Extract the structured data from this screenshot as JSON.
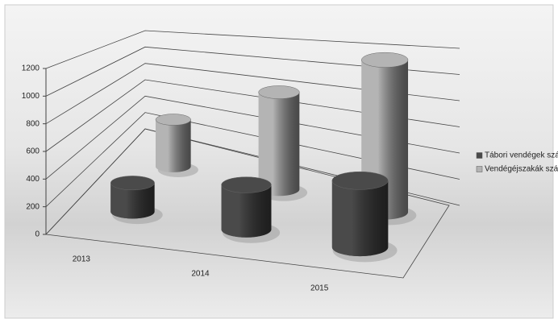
{
  "chart_data": {
    "type": "cylinder3d",
    "categories": [
      "2013",
      "2014",
      "2015"
    ],
    "series": [
      {
        "name": "Tábori vendégek száma",
        "color": "#4a4a4a",
        "values": [
          220,
          300,
          400
        ]
      },
      {
        "name": "Vendégéjszakák száma",
        "color": "#b4b4b4",
        "values": [
          450,
          800,
          1100
        ]
      }
    ],
    "ylim": [
      0,
      1200
    ],
    "yticks": [
      0,
      200,
      400,
      600,
      800,
      1000,
      1200
    ],
    "grid": true,
    "legend": "right"
  }
}
